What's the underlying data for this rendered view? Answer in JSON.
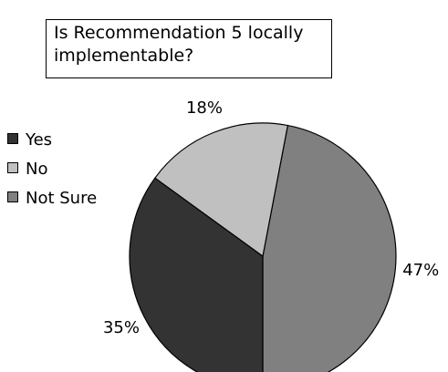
{
  "chart_data": {
    "type": "pie",
    "title": "Is Recommendation 5 locally implementable?",
    "categories": [
      "Yes",
      "No",
      "Not Sure"
    ],
    "values": [
      35,
      18,
      47
    ],
    "value_labels": [
      "35%",
      "18%",
      "47%"
    ],
    "colors": [
      "#333333",
      "#c0c0c0",
      "#808080"
    ],
    "legend_position": "left"
  }
}
